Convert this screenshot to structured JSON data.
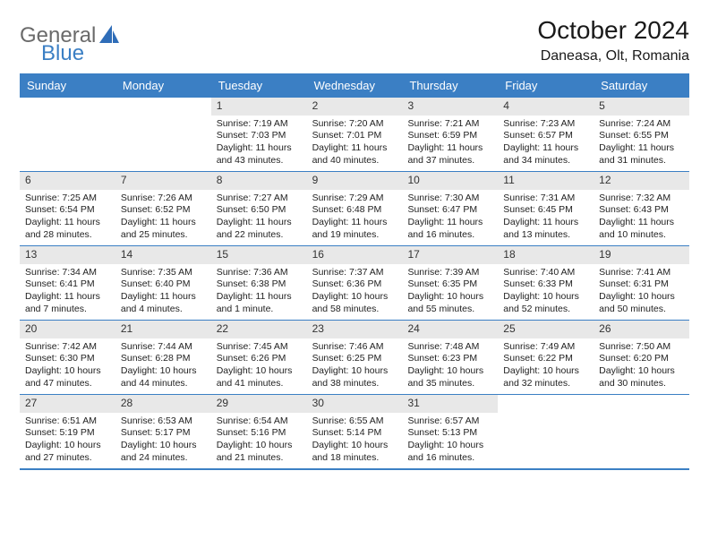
{
  "logo": {
    "text_general": "General",
    "text_blue": "Blue"
  },
  "header": {
    "month_title": "October 2024",
    "location": "Daneasa, Olt, Romania"
  },
  "colors": {
    "header_bar": "#3b7fc4",
    "header_text": "#ffffff",
    "cell_num_bg": "#e8e8e8",
    "divider": "#3b7fc4",
    "logo_gray": "#6a6a6a",
    "logo_blue": "#3b7fc4"
  },
  "day_names": [
    "Sunday",
    "Monday",
    "Tuesday",
    "Wednesday",
    "Thursday",
    "Friday",
    "Saturday"
  ],
  "weeks": [
    [
      {
        "empty": true
      },
      {
        "empty": true
      },
      {
        "num": "1",
        "sunrise": "Sunrise: 7:19 AM",
        "sunset": "Sunset: 7:03 PM",
        "day1": "Daylight: 11 hours",
        "day2": "and 43 minutes."
      },
      {
        "num": "2",
        "sunrise": "Sunrise: 7:20 AM",
        "sunset": "Sunset: 7:01 PM",
        "day1": "Daylight: 11 hours",
        "day2": "and 40 minutes."
      },
      {
        "num": "3",
        "sunrise": "Sunrise: 7:21 AM",
        "sunset": "Sunset: 6:59 PM",
        "day1": "Daylight: 11 hours",
        "day2": "and 37 minutes."
      },
      {
        "num": "4",
        "sunrise": "Sunrise: 7:23 AM",
        "sunset": "Sunset: 6:57 PM",
        "day1": "Daylight: 11 hours",
        "day2": "and 34 minutes."
      },
      {
        "num": "5",
        "sunrise": "Sunrise: 7:24 AM",
        "sunset": "Sunset: 6:55 PM",
        "day1": "Daylight: 11 hours",
        "day2": "and 31 minutes."
      }
    ],
    [
      {
        "num": "6",
        "sunrise": "Sunrise: 7:25 AM",
        "sunset": "Sunset: 6:54 PM",
        "day1": "Daylight: 11 hours",
        "day2": "and 28 minutes."
      },
      {
        "num": "7",
        "sunrise": "Sunrise: 7:26 AM",
        "sunset": "Sunset: 6:52 PM",
        "day1": "Daylight: 11 hours",
        "day2": "and 25 minutes."
      },
      {
        "num": "8",
        "sunrise": "Sunrise: 7:27 AM",
        "sunset": "Sunset: 6:50 PM",
        "day1": "Daylight: 11 hours",
        "day2": "and 22 minutes."
      },
      {
        "num": "9",
        "sunrise": "Sunrise: 7:29 AM",
        "sunset": "Sunset: 6:48 PM",
        "day1": "Daylight: 11 hours",
        "day2": "and 19 minutes."
      },
      {
        "num": "10",
        "sunrise": "Sunrise: 7:30 AM",
        "sunset": "Sunset: 6:47 PM",
        "day1": "Daylight: 11 hours",
        "day2": "and 16 minutes."
      },
      {
        "num": "11",
        "sunrise": "Sunrise: 7:31 AM",
        "sunset": "Sunset: 6:45 PM",
        "day1": "Daylight: 11 hours",
        "day2": "and 13 minutes."
      },
      {
        "num": "12",
        "sunrise": "Sunrise: 7:32 AM",
        "sunset": "Sunset: 6:43 PM",
        "day1": "Daylight: 11 hours",
        "day2": "and 10 minutes."
      }
    ],
    [
      {
        "num": "13",
        "sunrise": "Sunrise: 7:34 AM",
        "sunset": "Sunset: 6:41 PM",
        "day1": "Daylight: 11 hours",
        "day2": "and 7 minutes."
      },
      {
        "num": "14",
        "sunrise": "Sunrise: 7:35 AM",
        "sunset": "Sunset: 6:40 PM",
        "day1": "Daylight: 11 hours",
        "day2": "and 4 minutes."
      },
      {
        "num": "15",
        "sunrise": "Sunrise: 7:36 AM",
        "sunset": "Sunset: 6:38 PM",
        "day1": "Daylight: 11 hours",
        "day2": "and 1 minute."
      },
      {
        "num": "16",
        "sunrise": "Sunrise: 7:37 AM",
        "sunset": "Sunset: 6:36 PM",
        "day1": "Daylight: 10 hours",
        "day2": "and 58 minutes."
      },
      {
        "num": "17",
        "sunrise": "Sunrise: 7:39 AM",
        "sunset": "Sunset: 6:35 PM",
        "day1": "Daylight: 10 hours",
        "day2": "and 55 minutes."
      },
      {
        "num": "18",
        "sunrise": "Sunrise: 7:40 AM",
        "sunset": "Sunset: 6:33 PM",
        "day1": "Daylight: 10 hours",
        "day2": "and 52 minutes."
      },
      {
        "num": "19",
        "sunrise": "Sunrise: 7:41 AM",
        "sunset": "Sunset: 6:31 PM",
        "day1": "Daylight: 10 hours",
        "day2": "and 50 minutes."
      }
    ],
    [
      {
        "num": "20",
        "sunrise": "Sunrise: 7:42 AM",
        "sunset": "Sunset: 6:30 PM",
        "day1": "Daylight: 10 hours",
        "day2": "and 47 minutes."
      },
      {
        "num": "21",
        "sunrise": "Sunrise: 7:44 AM",
        "sunset": "Sunset: 6:28 PM",
        "day1": "Daylight: 10 hours",
        "day2": "and 44 minutes."
      },
      {
        "num": "22",
        "sunrise": "Sunrise: 7:45 AM",
        "sunset": "Sunset: 6:26 PM",
        "day1": "Daylight: 10 hours",
        "day2": "and 41 minutes."
      },
      {
        "num": "23",
        "sunrise": "Sunrise: 7:46 AM",
        "sunset": "Sunset: 6:25 PM",
        "day1": "Daylight: 10 hours",
        "day2": "and 38 minutes."
      },
      {
        "num": "24",
        "sunrise": "Sunrise: 7:48 AM",
        "sunset": "Sunset: 6:23 PM",
        "day1": "Daylight: 10 hours",
        "day2": "and 35 minutes."
      },
      {
        "num": "25",
        "sunrise": "Sunrise: 7:49 AM",
        "sunset": "Sunset: 6:22 PM",
        "day1": "Daylight: 10 hours",
        "day2": "and 32 minutes."
      },
      {
        "num": "26",
        "sunrise": "Sunrise: 7:50 AM",
        "sunset": "Sunset: 6:20 PM",
        "day1": "Daylight: 10 hours",
        "day2": "and 30 minutes."
      }
    ],
    [
      {
        "num": "27",
        "sunrise": "Sunrise: 6:51 AM",
        "sunset": "Sunset: 5:19 PM",
        "day1": "Daylight: 10 hours",
        "day2": "and 27 minutes."
      },
      {
        "num": "28",
        "sunrise": "Sunrise: 6:53 AM",
        "sunset": "Sunset: 5:17 PM",
        "day1": "Daylight: 10 hours",
        "day2": "and 24 minutes."
      },
      {
        "num": "29",
        "sunrise": "Sunrise: 6:54 AM",
        "sunset": "Sunset: 5:16 PM",
        "day1": "Daylight: 10 hours",
        "day2": "and 21 minutes."
      },
      {
        "num": "30",
        "sunrise": "Sunrise: 6:55 AM",
        "sunset": "Sunset: 5:14 PM",
        "day1": "Daylight: 10 hours",
        "day2": "and 18 minutes."
      },
      {
        "num": "31",
        "sunrise": "Sunrise: 6:57 AM",
        "sunset": "Sunset: 5:13 PM",
        "day1": "Daylight: 10 hours",
        "day2": "and 16 minutes."
      },
      {
        "empty": true
      },
      {
        "empty": true
      }
    ]
  ]
}
